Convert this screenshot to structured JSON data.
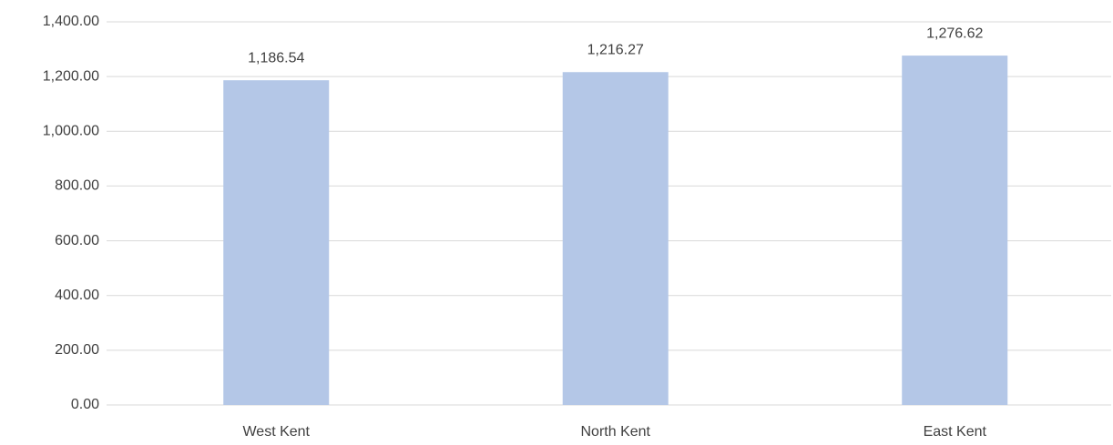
{
  "chart_data": {
    "type": "bar",
    "categories": [
      "West Kent",
      "North Kent",
      "East Kent"
    ],
    "values": [
      1186.54,
      1216.27,
      1276.62
    ],
    "value_labels": [
      "1,186.54",
      "1,216.27",
      "1,276.62"
    ],
    "color": "#b4c7e7",
    "ylim": [
      0,
      1400
    ],
    "yticks": [
      {
        "value": 0,
        "label": "0.00"
      },
      {
        "value": 200,
        "label": "200.00"
      },
      {
        "value": 400,
        "label": "400.00"
      },
      {
        "value": 600,
        "label": "600.00"
      },
      {
        "value": 800,
        "label": "800.00"
      },
      {
        "value": 1000,
        "label": "1,000.00"
      },
      {
        "value": 1200,
        "label": "1,200.00"
      },
      {
        "value": 1400,
        "label": "1,400.00"
      }
    ],
    "grid": true
  }
}
